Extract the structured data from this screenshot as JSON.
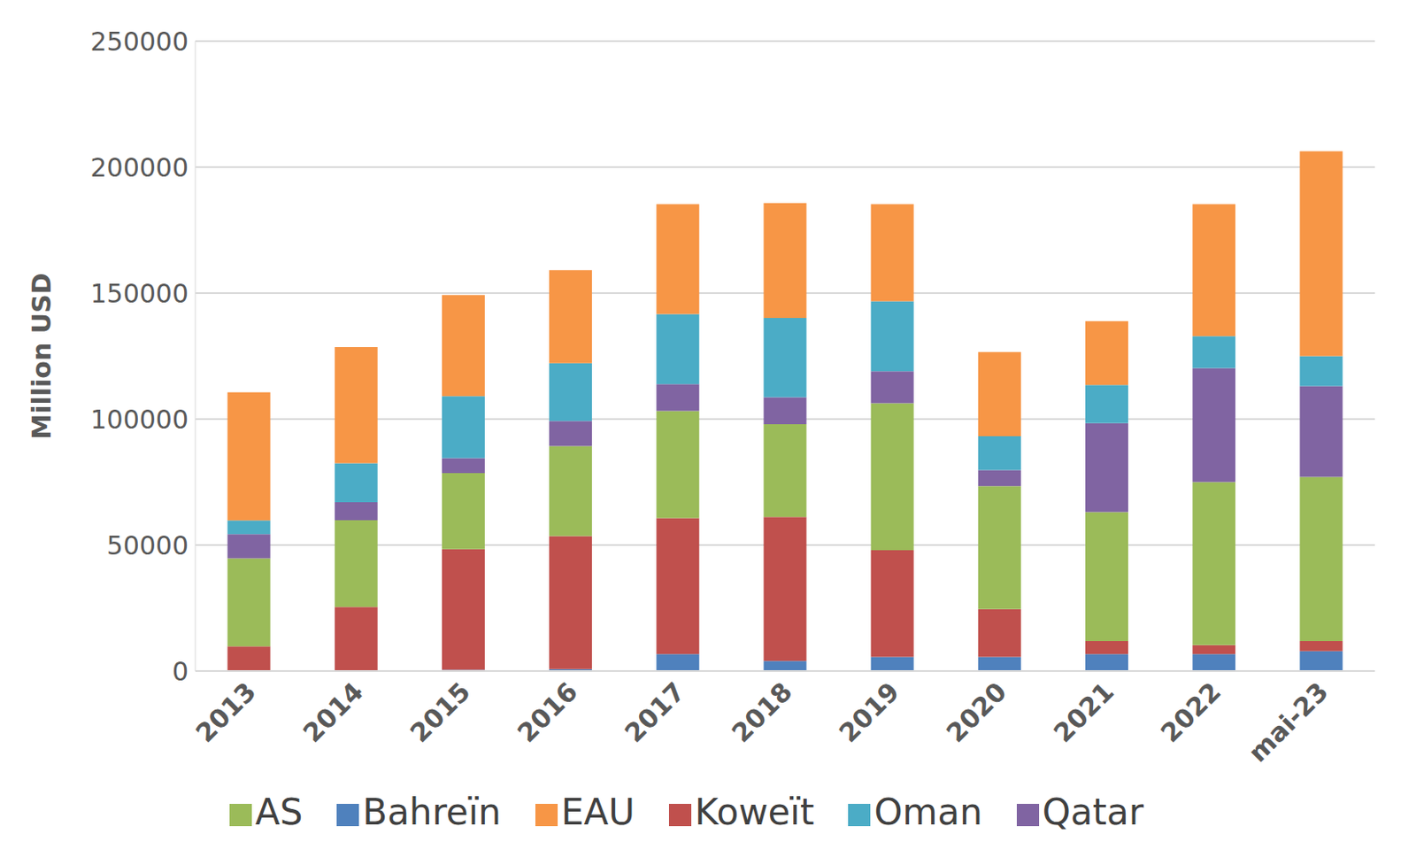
{
  "chart_data": {
    "type": "bar",
    "stacked": true,
    "grid": true,
    "legend": "bottom",
    "ylabel": "Million USD",
    "categories": [
      "2013",
      "2014",
      "2015",
      "2016",
      "2017",
      "2018",
      "2019",
      "2020",
      "2021",
      "2022",
      "mai-23"
    ],
    "ylim": [
      0,
      250000
    ],
    "yticks": [
      0,
      50000,
      100000,
      150000,
      200000,
      250000
    ],
    "series": [
      {
        "name": "Bahreïn",
        "color": "#4f81bd",
        "values": [
          300,
          200,
          500,
          800,
          6700,
          4000,
          5600,
          5600,
          6700,
          6700,
          7900
        ]
      },
      {
        "name": "Koweït",
        "color": "#c0504d",
        "values": [
          9500,
          25200,
          47900,
          52800,
          54000,
          57100,
          42400,
          19000,
          5200,
          3600,
          4000
        ]
      },
      {
        "name": "AS",
        "color": "#9bbb59",
        "values": [
          34900,
          34500,
          30200,
          35700,
          42500,
          36900,
          58300,
          48800,
          51200,
          64700,
          65100
        ]
      },
      {
        "name": "Qatar",
        "color": "#8064a2",
        "values": [
          9600,
          7100,
          5900,
          9900,
          10700,
          10700,
          12700,
          6400,
          35300,
          45200,
          36100
        ]
      },
      {
        "name": "Oman",
        "color": "#4bacc6",
        "values": [
          5500,
          15500,
          24600,
          23000,
          27800,
          31400,
          27800,
          13400,
          15100,
          12700,
          11900
        ]
      },
      {
        "name": "EAU",
        "color": "#f79646",
        "values": [
          50800,
          46100,
          40100,
          36900,
          43600,
          45600,
          38500,
          33400,
          25400,
          52400,
          81300
        ]
      }
    ]
  }
}
